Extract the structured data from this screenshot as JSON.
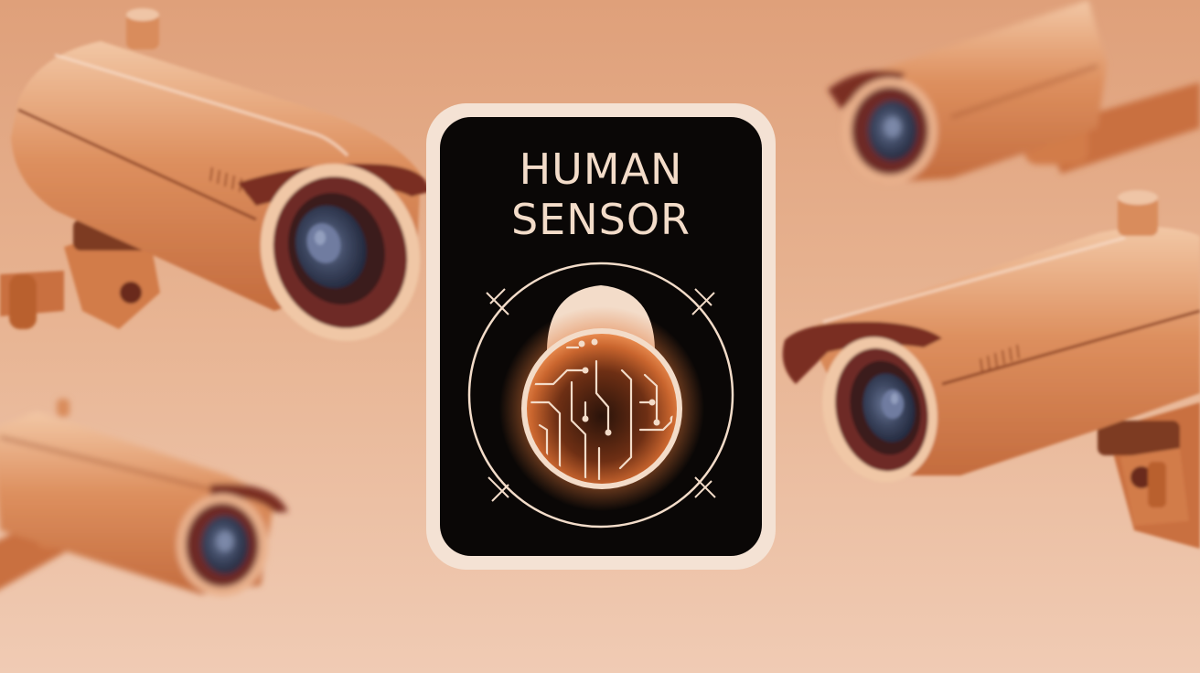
{
  "badge": {
    "title_line_1": "HUMAN",
    "title_line_2": "SENSOR"
  },
  "icons": {
    "badge_emblem": "head-with-circuit-brain-icon",
    "camera": "security-camera-icon"
  },
  "colors": {
    "background_top": "#dfa27d",
    "background_bottom": "#f0c9b1",
    "camera_body": "#d68656",
    "camera_highlight": "#f1c6a6",
    "badge_frame": "#f4e2d4",
    "badge_panel": "#0a0706",
    "title_text": "#f3dcc9",
    "lens_glass": "#3c4660",
    "glow": "#e0773a"
  }
}
